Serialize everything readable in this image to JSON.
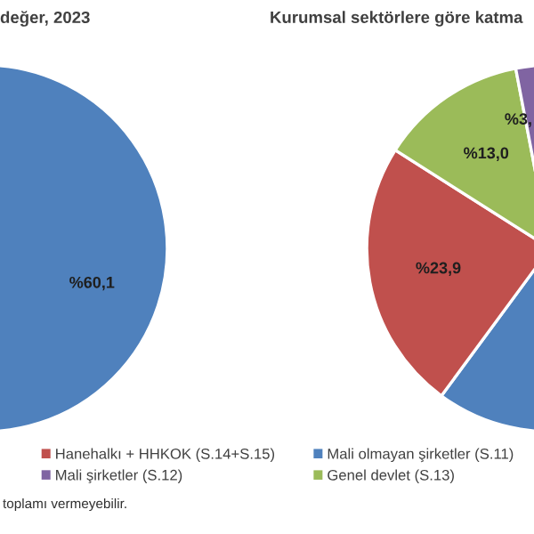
{
  "chart_data": [
    {
      "type": "pie",
      "title": "değer, 2023",
      "categories": [
        null,
        null,
        null,
        null
      ],
      "values": [
        60.1,
        null,
        null,
        null
      ],
      "colors": [
        "#4f81bd",
        "#c0504d",
        "#9bbb59",
        "#8064a2"
      ],
      "value_labels": [
        "%60,1",
        null,
        null,
        null
      ],
      "annotations": [
        "toplamı vermeyebilir."
      ]
    },
    {
      "type": "pie",
      "title": "Kurumsal sektörlere göre katma",
      "categories": [
        "Mali olmayan şirketler (S.11)",
        "Hanehalkı + HHKOK (S.14+S.15)",
        "Genel devlet (S.13)",
        "Mali şirketler (S.12)"
      ],
      "values": [
        60.1,
        23.9,
        13.0,
        3.0
      ],
      "colors": [
        "#4f81bd",
        "#c0504d",
        "#9bbb59",
        "#8064a2"
      ],
      "value_labels": [
        null,
        "%23,9",
        "%13,0",
        "%3,"
      ],
      "legend": "bottom"
    }
  ]
}
